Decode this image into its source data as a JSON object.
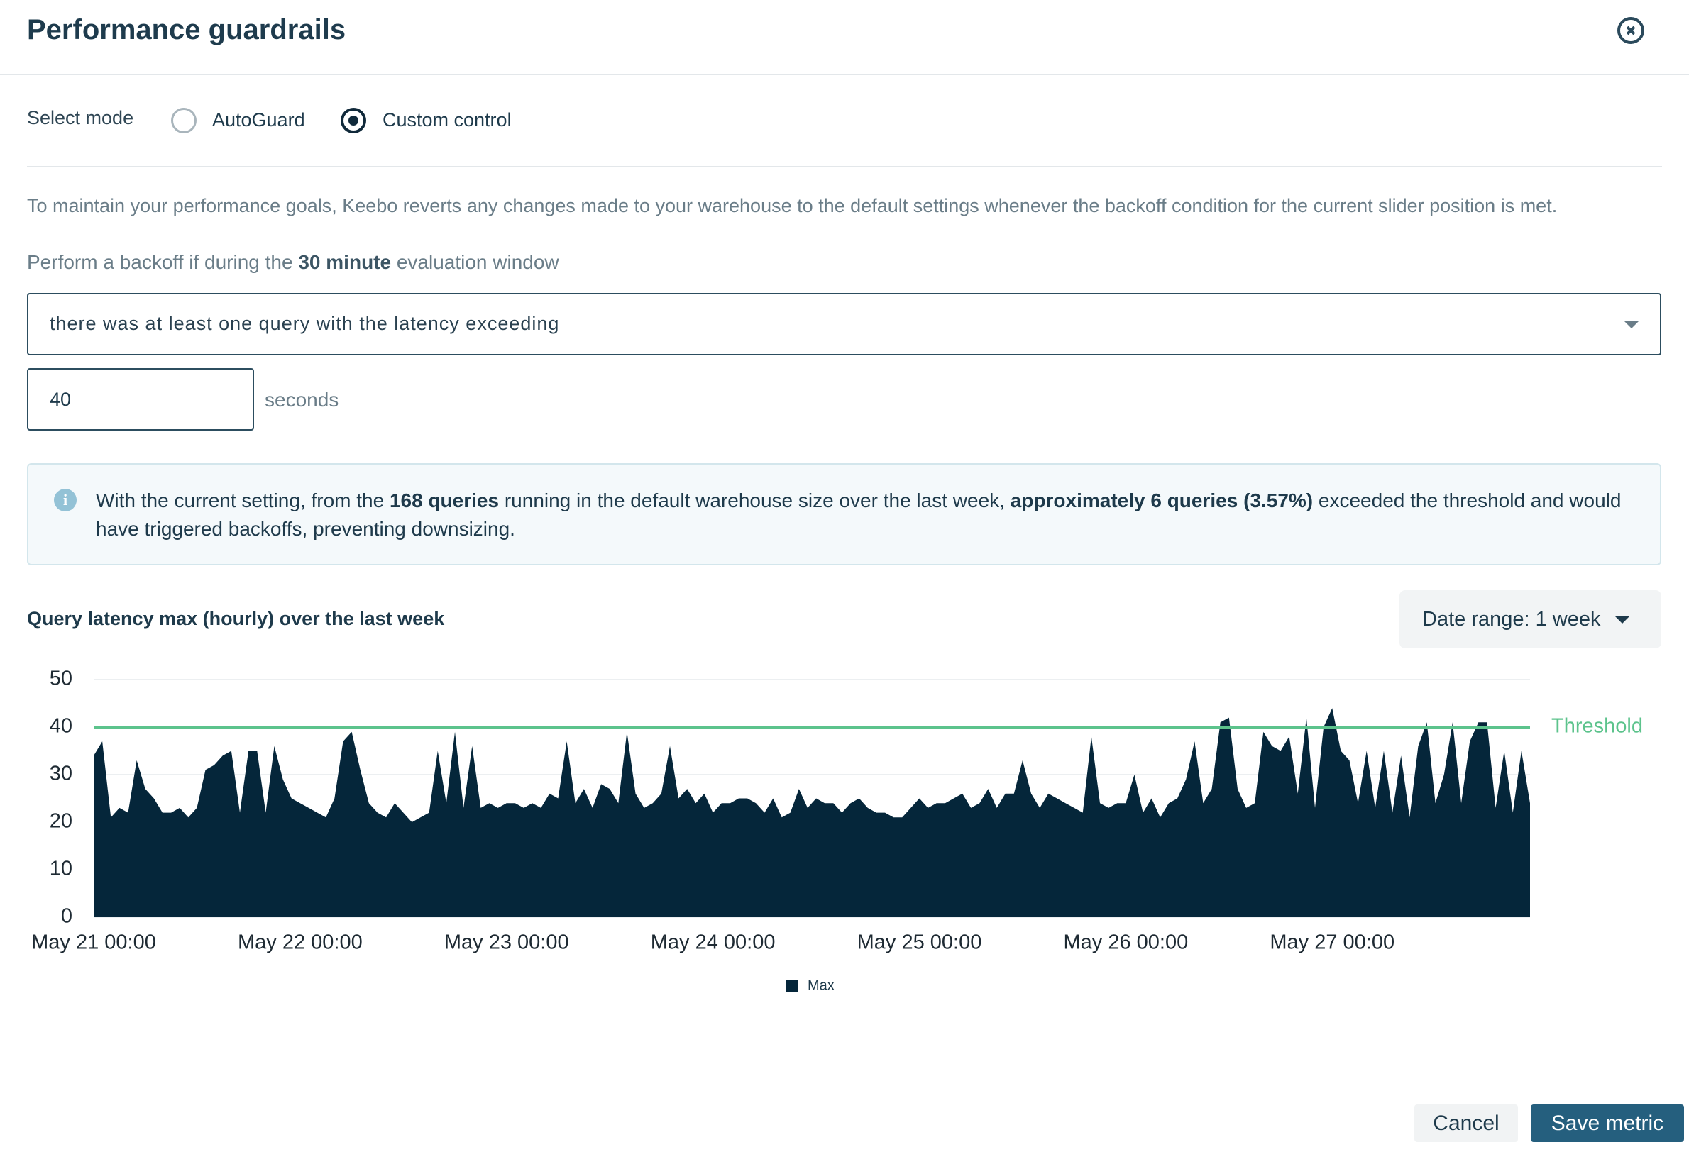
{
  "header": {
    "title": "Performance guardrails"
  },
  "mode": {
    "label": "Select mode",
    "options": [
      "AutoGuard",
      "Custom control"
    ]
  },
  "description": "To maintain your performance goals, Keebo reverts any changes made to your warehouse to the default settings whenever the backoff condition for the current slider position is met.",
  "window_text": [
    "Perform a backoff if during the",
    "30 minute",
    "evaluation window"
  ],
  "condition_select": "there was at least one query with the latency exceeding",
  "latency_input": {
    "value": 40,
    "unit": "seconds"
  },
  "info": [
    "With the current setting, from the",
    "168 queries",
    "running in the default warehouse size over the last week,",
    "approximately 6 queries (3.57%)",
    "exceeded the threshold and would have triggered backoffs, preventing downsizing."
  ],
  "date_range": "Date range: 1 week",
  "buttons": {
    "cancel": "Cancel",
    "save": "Save metric"
  },
  "chart_data": {
    "type": "area",
    "title": "Query latency max (hourly) over the last week",
    "categories": [
      "May 21 00:00",
      null,
      null,
      null,
      null,
      null,
      null,
      null,
      null,
      null,
      null,
      null,
      null,
      null,
      null,
      null,
      null,
      null,
      null,
      null,
      null,
      null,
      null,
      null,
      "May 22 00:00",
      null,
      null,
      null,
      null,
      null,
      null,
      null,
      null,
      null,
      null,
      null,
      null,
      null,
      null,
      null,
      null,
      null,
      null,
      null,
      null,
      null,
      null,
      null,
      "May 23 00:00",
      null,
      null,
      null,
      null,
      null,
      null,
      null,
      null,
      null,
      null,
      null,
      null,
      null,
      null,
      null,
      null,
      null,
      null,
      null,
      null,
      null,
      null,
      null,
      "May 24 00:00",
      null,
      null,
      null,
      null,
      null,
      null,
      null,
      null,
      null,
      null,
      null,
      null,
      null,
      null,
      null,
      null,
      null,
      null,
      null,
      null,
      null,
      null,
      null,
      "May 25 00:00",
      null,
      null,
      null,
      null,
      null,
      null,
      null,
      null,
      null,
      null,
      null,
      null,
      null,
      null,
      null,
      null,
      null,
      null,
      null,
      null,
      null,
      null,
      null,
      "May 26 00:00",
      null,
      null,
      null,
      null,
      null,
      null,
      null,
      null,
      null,
      null,
      null,
      null,
      null,
      null,
      null,
      null,
      null,
      null,
      null,
      null,
      null,
      null,
      null,
      "May 27 00:00",
      null,
      null,
      null,
      null,
      null,
      null,
      null,
      null,
      null,
      null,
      null,
      null,
      null,
      null,
      null,
      null,
      null,
      null,
      null,
      null,
      null,
      null,
      null
    ],
    "series": [
      {
        "name": "Max",
        "color": "#05263a",
        "values": [
          34,
          37,
          21,
          23,
          22,
          33,
          27,
          25,
          22,
          22,
          23,
          21,
          23,
          31,
          32,
          34,
          35,
          22,
          35,
          35,
          22,
          36,
          29,
          25,
          24,
          23,
          22,
          21,
          25,
          37,
          39,
          31,
          24,
          22,
          21,
          24,
          22,
          20,
          21,
          22,
          35,
          24,
          39,
          23,
          36,
          23,
          24,
          23,
          24,
          24,
          23,
          24,
          23,
          26,
          25,
          37,
          24,
          27,
          23,
          28,
          27,
          24,
          39,
          26,
          23,
          24,
          26,
          36,
          25,
          27,
          24,
          26,
          22,
          24,
          24,
          25,
          25,
          24,
          22,
          25,
          21,
          22,
          27,
          23,
          25,
          24,
          24,
          22,
          24,
          25,
          23,
          22,
          22,
          21,
          21,
          23,
          25,
          23,
          24,
          24,
          25,
          26,
          23,
          24,
          27,
          23,
          26,
          26,
          33,
          26,
          23,
          26,
          25,
          24,
          23,
          22,
          38,
          24,
          23,
          24,
          24,
          30,
          22,
          25,
          21,
          24,
          25,
          29,
          37,
          24,
          27,
          41,
          42,
          27,
          23,
          24,
          39,
          36,
          35,
          38,
          26,
          42,
          23,
          40,
          44,
          35,
          33,
          24,
          35,
          23,
          35,
          22,
          34,
          21,
          36,
          41,
          24,
          30,
          41,
          24,
          37,
          41,
          41,
          23,
          35,
          22,
          35,
          24
        ]
      }
    ],
    "ylim": [
      0,
      50
    ],
    "yticks": [
      0,
      10,
      20,
      30,
      40,
      50
    ],
    "grid": true,
    "threshold": {
      "value": 40,
      "label": "Threshold",
      "color": "#5cc38c"
    }
  }
}
